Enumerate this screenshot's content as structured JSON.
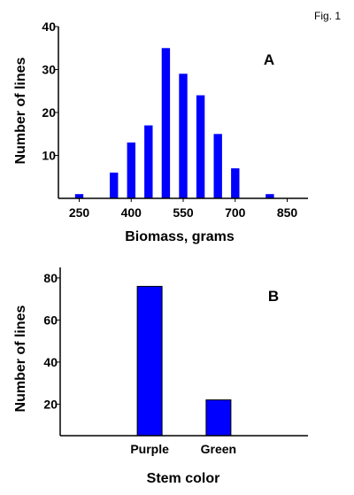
{
  "figure_label": "Fig. 1",
  "chart_data": [
    {
      "type": "bar",
      "panel": "A",
      "xlabel": "Biomass, grams",
      "ylabel": "Number of lines",
      "xlim": [
        190,
        910
      ],
      "ylim": [
        0,
        40
      ],
      "bar_width": 24,
      "x_ticks": [
        250,
        400,
        550,
        700,
        850
      ],
      "y_ticks": [
        10,
        20,
        30,
        40
      ],
      "grid": false,
      "bar_color": "#0000FF",
      "x": [
        250,
        350,
        400,
        450,
        500,
        550,
        600,
        650,
        700,
        800
      ],
      "values": [
        1,
        6,
        13,
        17,
        35,
        29,
        24,
        15,
        7,
        1
      ]
    },
    {
      "type": "bar",
      "panel": "B",
      "xlabel": "Stem color",
      "ylabel": "Number of lines",
      "ylim": [
        5,
        85
      ],
      "y_ticks": [
        20,
        40,
        60,
        80
      ],
      "grid": false,
      "bar_color": "#0000FF",
      "categories": [
        "Purple",
        "Green"
      ],
      "values": [
        76,
        22
      ]
    }
  ]
}
